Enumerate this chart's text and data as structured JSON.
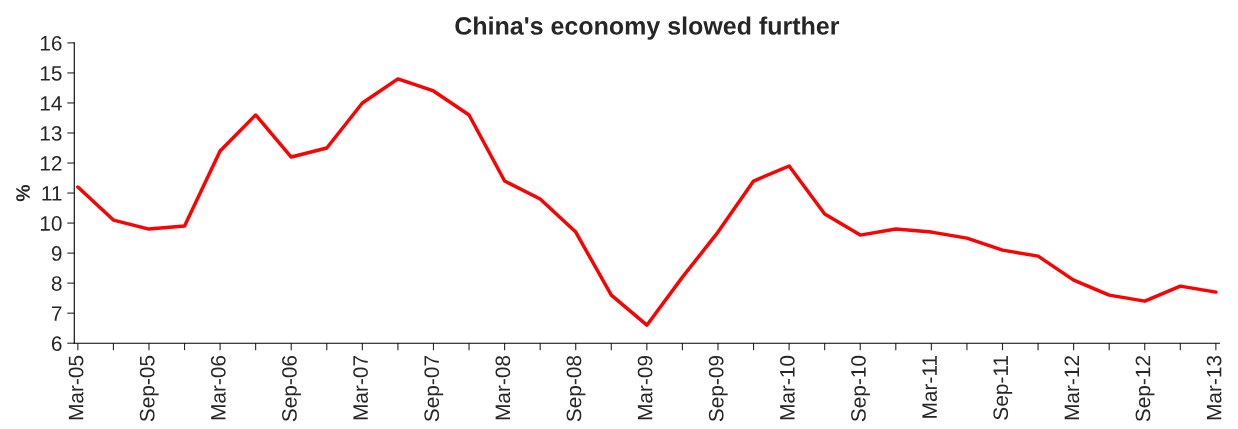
{
  "chart_data": {
    "type": "line",
    "title": "China's economy slowed further",
    "ylabel": "%",
    "categories": [
      "Mar-05",
      null,
      "Sep-05",
      null,
      "Mar-06",
      null,
      "Sep-06",
      null,
      "Mar-07",
      null,
      "Sep-07",
      null,
      "Mar-08",
      null,
      "Sep-08",
      null,
      "Mar-09",
      null,
      "Sep-09",
      null,
      "Mar-10",
      null,
      "Sep-10",
      null,
      "Mar-11",
      null,
      "Sep-11",
      null,
      "Mar-12",
      null,
      "Sep-12",
      null,
      "Mar-13"
    ],
    "series": [
      {
        "color": "#ff0000",
        "values": [
          11.2,
          10.1,
          9.8,
          9.9,
          12.4,
          13.6,
          12.2,
          12.5,
          14.0,
          14.8,
          14.4,
          13.6,
          11.4,
          10.8,
          9.7,
          7.6,
          6.6,
          8.2,
          9.7,
          11.4,
          11.9,
          10.3,
          9.6,
          9.8,
          9.7,
          9.5,
          9.1,
          8.9,
          8.1,
          7.6,
          7.4,
          7.9,
          7.7
        ]
      }
    ],
    "ylim": [
      6,
      16
    ],
    "yticks": [
      6,
      7,
      8,
      9,
      10,
      11,
      12,
      13,
      14,
      15,
      16
    ],
    "grid": false,
    "legend": false,
    "marker": "none",
    "line_style": "solid"
  }
}
